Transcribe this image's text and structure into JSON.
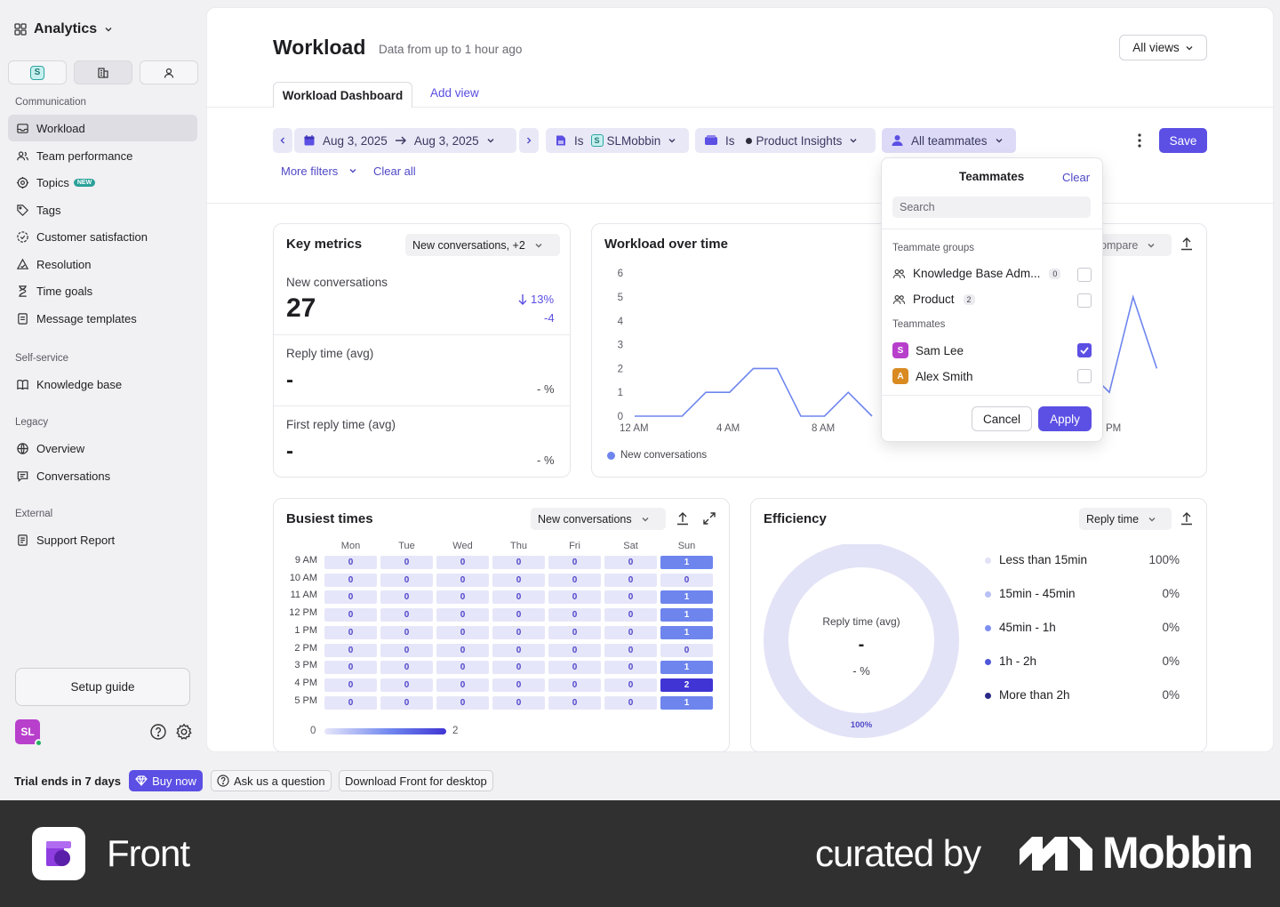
{
  "sidebar": {
    "app_title": "Analytics",
    "switch_badge": "S",
    "sections": {
      "communication": "Communication",
      "self_service": "Self-service",
      "legacy": "Legacy",
      "external": "External"
    },
    "items": {
      "workload": "Workload",
      "team_performance": "Team performance",
      "topics": "Topics",
      "topics_badge": "NEW",
      "tags": "Tags",
      "customer_satisfaction": "Customer satisfaction",
      "resolution": "Resolution",
      "time_goals": "Time goals",
      "message_templates": "Message templates",
      "knowledge_base": "Knowledge base",
      "overview": "Overview",
      "conversations": "Conversations",
      "support_report": "Support Report"
    },
    "setup_guide": "Setup guide",
    "avatar_initials": "SL"
  },
  "header": {
    "title": "Workload",
    "subtitle": "Data from up to 1 hour ago",
    "views_label": "All views",
    "tab_active": "Workload Dashboard",
    "tab_add": "Add view"
  },
  "filters": {
    "date_from": "Aug 3, 2025",
    "date_to": "Aug 3, 2025",
    "f1_is": "Is",
    "f1_badge": "S",
    "f1_value": "SLMobbin",
    "f2_is": "Is",
    "f2_value": "Product Insights",
    "f3_value": "All teammates",
    "more_filters": "More filters",
    "clear_all": "Clear all",
    "save": "Save"
  },
  "key_metrics": {
    "title": "Key metrics",
    "selector": "New conversations, +2",
    "m1_label": "New conversations",
    "m1_value": "27",
    "m1_pct": "13%",
    "m1_delta": "-4",
    "m2_label": "Reply time (avg)",
    "m2_value": "-",
    "m2_pct": "- %",
    "m3_label": "First reply time (avg)",
    "m3_value": "-",
    "m3_pct": "- %"
  },
  "workload_chart": {
    "title": "Workload over time",
    "compare_label": "ompare",
    "x_ticks": [
      "12 AM",
      "4 AM",
      "8 AM",
      "PM"
    ],
    "legend": "New conversations"
  },
  "chart_data": {
    "type": "line",
    "title": "Workload over time",
    "x_tick_labels": [
      "12 AM",
      "4 AM",
      "8 AM"
    ],
    "y_ticks": [
      0,
      1,
      2,
      3,
      4,
      5,
      6
    ],
    "ylim": [
      0,
      6
    ],
    "series": [
      {
        "name": "New conversations",
        "color": "#6e85ee",
        "x_hours": [
          0,
          1,
          2,
          3,
          4,
          5,
          6,
          7,
          8,
          9,
          10,
          11,
          12,
          13,
          14,
          15,
          16,
          17,
          18,
          19,
          20,
          21,
          22,
          23
        ],
        "values": [
          0,
          0,
          0,
          1,
          1,
          2,
          2,
          0,
          0,
          1,
          0,
          null,
          null,
          null,
          null,
          null,
          null,
          null,
          null,
          2,
          1,
          5,
          2,
          null
        ]
      }
    ]
  },
  "busiest": {
    "title": "Busiest times",
    "selector": "New conversations",
    "days": [
      "Mon",
      "Tue",
      "Wed",
      "Thu",
      "Fri",
      "Sat",
      "Sun"
    ],
    "hours": [
      "9 AM",
      "10 AM",
      "11 AM",
      "12 PM",
      "1 PM",
      "2 PM",
      "3 PM",
      "4 PM",
      "5 PM"
    ],
    "values": [
      [
        0,
        0,
        0,
        0,
        0,
        0,
        1
      ],
      [
        0,
        0,
        0,
        0,
        0,
        0,
        0
      ],
      [
        0,
        0,
        0,
        0,
        0,
        0,
        1
      ],
      [
        0,
        0,
        0,
        0,
        0,
        0,
        1
      ],
      [
        0,
        0,
        0,
        0,
        0,
        0,
        1
      ],
      [
        0,
        0,
        0,
        0,
        0,
        0,
        0
      ],
      [
        0,
        0,
        0,
        0,
        0,
        0,
        1
      ],
      [
        0,
        0,
        0,
        0,
        0,
        0,
        2
      ],
      [
        0,
        0,
        0,
        0,
        0,
        0,
        1
      ]
    ],
    "scale_min": "0",
    "scale_max": "2"
  },
  "efficiency": {
    "title": "Efficiency",
    "selector": "Reply time",
    "donut_label": "Reply time (avg)",
    "donut_value": "-",
    "donut_pct": "- %",
    "donut_foot": "100%",
    "rows": [
      {
        "label": "Less than 15min",
        "value": "100%",
        "color": "#e1e1f7"
      },
      {
        "label": "15min - 45min",
        "value": "0%",
        "color": "#b8c1f4"
      },
      {
        "label": "45min - 1h",
        "value": "0%",
        "color": "#7d8ff0"
      },
      {
        "label": "1h - 2h",
        "value": "0%",
        "color": "#4f57d8"
      },
      {
        "label": "More than 2h",
        "value": "0%",
        "color": "#2b2b86"
      }
    ]
  },
  "popup": {
    "title": "Teammates",
    "clear": "Clear",
    "search_placeholder": "Search",
    "groups_label": "Teammate groups",
    "group1": "Knowledge Base Adm...",
    "group1_count": "0",
    "group2": "Product",
    "group2_count": "2",
    "teammates_label": "Teammates",
    "tm1": "Sam Lee",
    "tm1_initial": "S",
    "tm2": "Alex Smith",
    "tm2_initial": "A",
    "cancel": "Cancel",
    "apply": "Apply"
  },
  "bottom": {
    "trial": "Trial ends in 7 days",
    "buy_now": "Buy now",
    "ask": "Ask us a question",
    "download": "Download Front for desktop"
  },
  "footer": {
    "app_name": "Front",
    "curated_by": "curated by",
    "brand": "Mobbin"
  }
}
